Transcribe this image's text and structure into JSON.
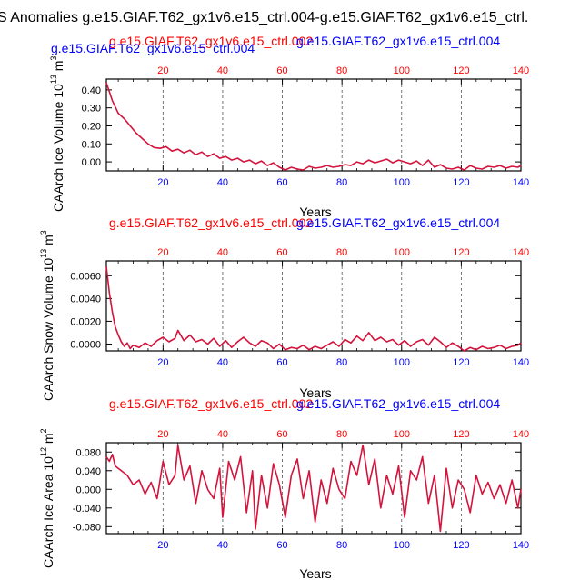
{
  "figure_title": "S Anomalies g.e15.GIAF.T62_gx1v6.e15_ctrl.004-g.e15.GIAF.T62_gx1v6.e15_ctrl.",
  "colors": {
    "red": "#ff0000",
    "blue": "#0000ff",
    "data_line": "#d4143c",
    "axis": "#000000",
    "grid": "#555555"
  },
  "chart_data": [
    {
      "type": "line",
      "ylabel": "CAArch Ice Volume 10",
      "ylabel_exp": "13",
      "ylabel_unit": "m",
      "ylabel_unit_exp": "3",
      "xlabel": "Years",
      "top_red_label": "g.e15.GIAF.T62_gx1v6.e15_ctrl.002",
      "top_blue_label": "g.e15.GIAF.T62_gx1v6.e15_ctrl.004",
      "left_blue_label": "g.e15.GIAF.T62_gx1v6.e15_ctrl.004",
      "xlim": [
        1,
        140
      ],
      "ylim": [
        -0.05,
        0.46
      ],
      "x_ticks": [
        20,
        40,
        60,
        80,
        100,
        120,
        140
      ],
      "x_tick_labels": [
        "20",
        "40",
        "60",
        "80",
        "100",
        "120",
        "140"
      ],
      "y_ticks": [
        0.4,
        0.3,
        0.2,
        0.1,
        0.0
      ],
      "y_tick_labels": [
        "0.40",
        "0.30",
        "0.20",
        "0.10",
        "0.00"
      ],
      "grid_x": [
        20,
        40,
        60,
        80,
        100,
        120
      ],
      "series": [
        {
          "name": "anomaly",
          "x": [
            1,
            3,
            5,
            7,
            9,
            11,
            13,
            15,
            17,
            19,
            21,
            23,
            25,
            27,
            29,
            31,
            33,
            35,
            37,
            39,
            41,
            43,
            45,
            47,
            49,
            51,
            53,
            55,
            57,
            59,
            61,
            63,
            65,
            67,
            69,
            71,
            73,
            75,
            77,
            79,
            81,
            83,
            85,
            87,
            89,
            91,
            93,
            95,
            97,
            99,
            101,
            103,
            105,
            107,
            109,
            111,
            113,
            115,
            117,
            119,
            121,
            123,
            125,
            127,
            129,
            131,
            133,
            135,
            137,
            139,
            140
          ],
          "values": [
            0.44,
            0.34,
            0.27,
            0.24,
            0.2,
            0.16,
            0.13,
            0.1,
            0.08,
            0.075,
            0.085,
            0.06,
            0.07,
            0.05,
            0.065,
            0.04,
            0.055,
            0.03,
            0.045,
            0.02,
            0.03,
            0.01,
            0.02,
            0.0,
            0.01,
            -0.01,
            0.005,
            -0.02,
            -0.005,
            -0.03,
            -0.045,
            -0.03,
            -0.04,
            -0.045,
            -0.025,
            -0.035,
            -0.03,
            -0.02,
            -0.03,
            -0.025,
            -0.015,
            -0.02,
            0.0,
            -0.01,
            0.01,
            -0.005,
            0.005,
            0.015,
            -0.005,
            0.01,
            0.0,
            -0.01,
            0.005,
            -0.02,
            0.01,
            -0.03,
            -0.015,
            -0.035,
            -0.04,
            -0.03,
            -0.045,
            -0.02,
            -0.035,
            -0.04,
            -0.025,
            -0.03,
            -0.02,
            -0.035,
            -0.025,
            -0.03,
            -0.02
          ]
        }
      ]
    },
    {
      "type": "line",
      "ylabel": "CAArch Snow Volume 10",
      "ylabel_exp": "13",
      "ylabel_unit": "m",
      "ylabel_unit_exp": "3",
      "xlabel": "Years",
      "top_red_label": "g.e15.GIAF.T62_gx1v6.e15_ctrl.002",
      "top_blue_label": "g.e15.GIAF.T62_gx1v6.e15_ctrl.004",
      "left_blue_label": "",
      "xlim": [
        1,
        140
      ],
      "ylim": [
        -0.0006,
        0.0073
      ],
      "x_ticks": [
        20,
        40,
        60,
        80,
        100,
        120,
        140
      ],
      "x_tick_labels": [
        "20",
        "40",
        "60",
        "80",
        "100",
        "120",
        "140"
      ],
      "y_ticks": [
        0.006,
        0.004,
        0.002,
        0.0
      ],
      "y_tick_labels": [
        "0.0060",
        "0.0040",
        "0.0020",
        "0.0000"
      ],
      "grid_x": [
        20,
        40,
        60,
        80,
        100,
        120
      ],
      "series": [
        {
          "name": "anomaly",
          "x": [
            1,
            2,
            3,
            4,
            5,
            6,
            7,
            8,
            9,
            10,
            12,
            14,
            16,
            18,
            20,
            22,
            24,
            25,
            27,
            29,
            31,
            33,
            35,
            37,
            39,
            41,
            43,
            45,
            47,
            49,
            51,
            53,
            55,
            57,
            59,
            61,
            63,
            65,
            67,
            69,
            71,
            73,
            75,
            77,
            79,
            81,
            83,
            85,
            87,
            89,
            91,
            93,
            95,
            97,
            99,
            101,
            103,
            105,
            107,
            109,
            111,
            113,
            115,
            117,
            119,
            121,
            123,
            125,
            127,
            129,
            131,
            133,
            135,
            137,
            139,
            140
          ],
          "values": [
            0.0068,
            0.0045,
            0.0028,
            0.0015,
            0.0008,
            0.0002,
            -0.0002,
            0.0001,
            -0.0004,
            -0.0001,
            -0.0003,
            0.0001,
            -0.0002,
            0.0003,
            0.0006,
            0.0002,
            0.0005,
            0.0012,
            0.0003,
            0.0008,
            0.0002,
            0.0004,
            0.0,
            0.0005,
            -0.0002,
            0.0003,
            -0.0003,
            0.0002,
            0.0006,
            0.0001,
            -0.0002,
            0.0003,
            0.0001,
            -0.0004,
            0.0,
            -0.0005,
            -0.0003,
            -0.0004,
            -0.0001,
            -0.0005,
            -0.0002,
            -0.0004,
            -0.0001,
            0.0002,
            -0.0002,
            0.0004,
            0.0001,
            0.0007,
            0.0003,
            0.001,
            0.0003,
            0.0006,
            0.0002,
            0.0004,
            -0.0001,
            0.0003,
            -0.0002,
            0.0002,
            0.0004,
            -0.0001,
            0.0006,
            0.0002,
            -0.0003,
            0.0001,
            -0.0002,
            -0.0006,
            -0.0003,
            -0.0005,
            -0.0002,
            -0.0004,
            -0.0003,
            -0.0001,
            -0.0004,
            -0.0002,
            -0.0001,
            0.0001
          ]
        }
      ]
    },
    {
      "type": "line",
      "ylabel": "CAArch Ice Area 10",
      "ylabel_exp": "12",
      "ylabel_unit": "m",
      "ylabel_unit_exp": "2",
      "xlabel": "Years",
      "top_red_label": "g.e15.GIAF.T62_gx1v6.e15_ctrl.002",
      "top_blue_label": "g.e15.GIAF.T62_gx1v6.e15_ctrl.004",
      "left_blue_label": "",
      "xlim": [
        1,
        140
      ],
      "ylim": [
        -0.095,
        0.1
      ],
      "x_ticks": [
        20,
        40,
        60,
        80,
        100,
        120,
        140
      ],
      "x_tick_labels": [
        "20",
        "40",
        "60",
        "80",
        "100",
        "120",
        "140"
      ],
      "y_ticks": [
        0.08,
        0.04,
        0.0,
        -0.04,
        -0.08
      ],
      "y_tick_labels": [
        "0.080",
        "0.040",
        "0.000",
        "-0.040",
        "-0.080"
      ],
      "grid_x": [
        20,
        40,
        60,
        80,
        100,
        120
      ],
      "series": [
        {
          "name": "anomaly",
          "x": [
            1,
            2,
            3,
            4,
            5,
            6,
            8,
            10,
            12,
            14,
            16,
            18,
            20,
            22,
            24,
            25,
            27,
            29,
            31,
            33,
            35,
            37,
            39,
            40,
            42,
            44,
            46,
            48,
            50,
            51,
            53,
            55,
            57,
            59,
            61,
            63,
            65,
            67,
            69,
            71,
            73,
            75,
            77,
            79,
            81,
            83,
            85,
            87,
            89,
            91,
            93,
            95,
            97,
            99,
            101,
            103,
            105,
            107,
            109,
            111,
            113,
            115,
            117,
            119,
            121,
            123,
            125,
            127,
            129,
            131,
            133,
            135,
            137,
            139,
            140
          ],
          "values": [
            0.07,
            0.06,
            0.075,
            0.05,
            0.045,
            0.04,
            0.03,
            0.01,
            0.02,
            -0.01,
            0.015,
            -0.02,
            0.06,
            0.01,
            0.03,
            0.095,
            0.02,
            0.05,
            -0.03,
            0.04,
            0.0,
            -0.02,
            0.045,
            -0.06,
            0.06,
            0.02,
            0.07,
            -0.05,
            0.04,
            -0.085,
            0.03,
            -0.04,
            0.055,
            0.01,
            -0.06,
            0.03,
            0.065,
            -0.02,
            0.04,
            -0.07,
            0.02,
            -0.03,
            0.045,
            0.0,
            -0.02,
            0.06,
            0.03,
            0.095,
            0.01,
            0.065,
            -0.04,
            0.03,
            -0.01,
            0.05,
            -0.06,
            0.04,
            0.02,
            0.07,
            -0.03,
            0.03,
            -0.09,
            0.045,
            -0.04,
            0.02,
            0.0,
            -0.05,
            0.03,
            -0.01,
            0.015,
            -0.02,
            0.01,
            -0.03,
            0.02,
            -0.04,
            0.0
          ]
        }
      ]
    }
  ]
}
